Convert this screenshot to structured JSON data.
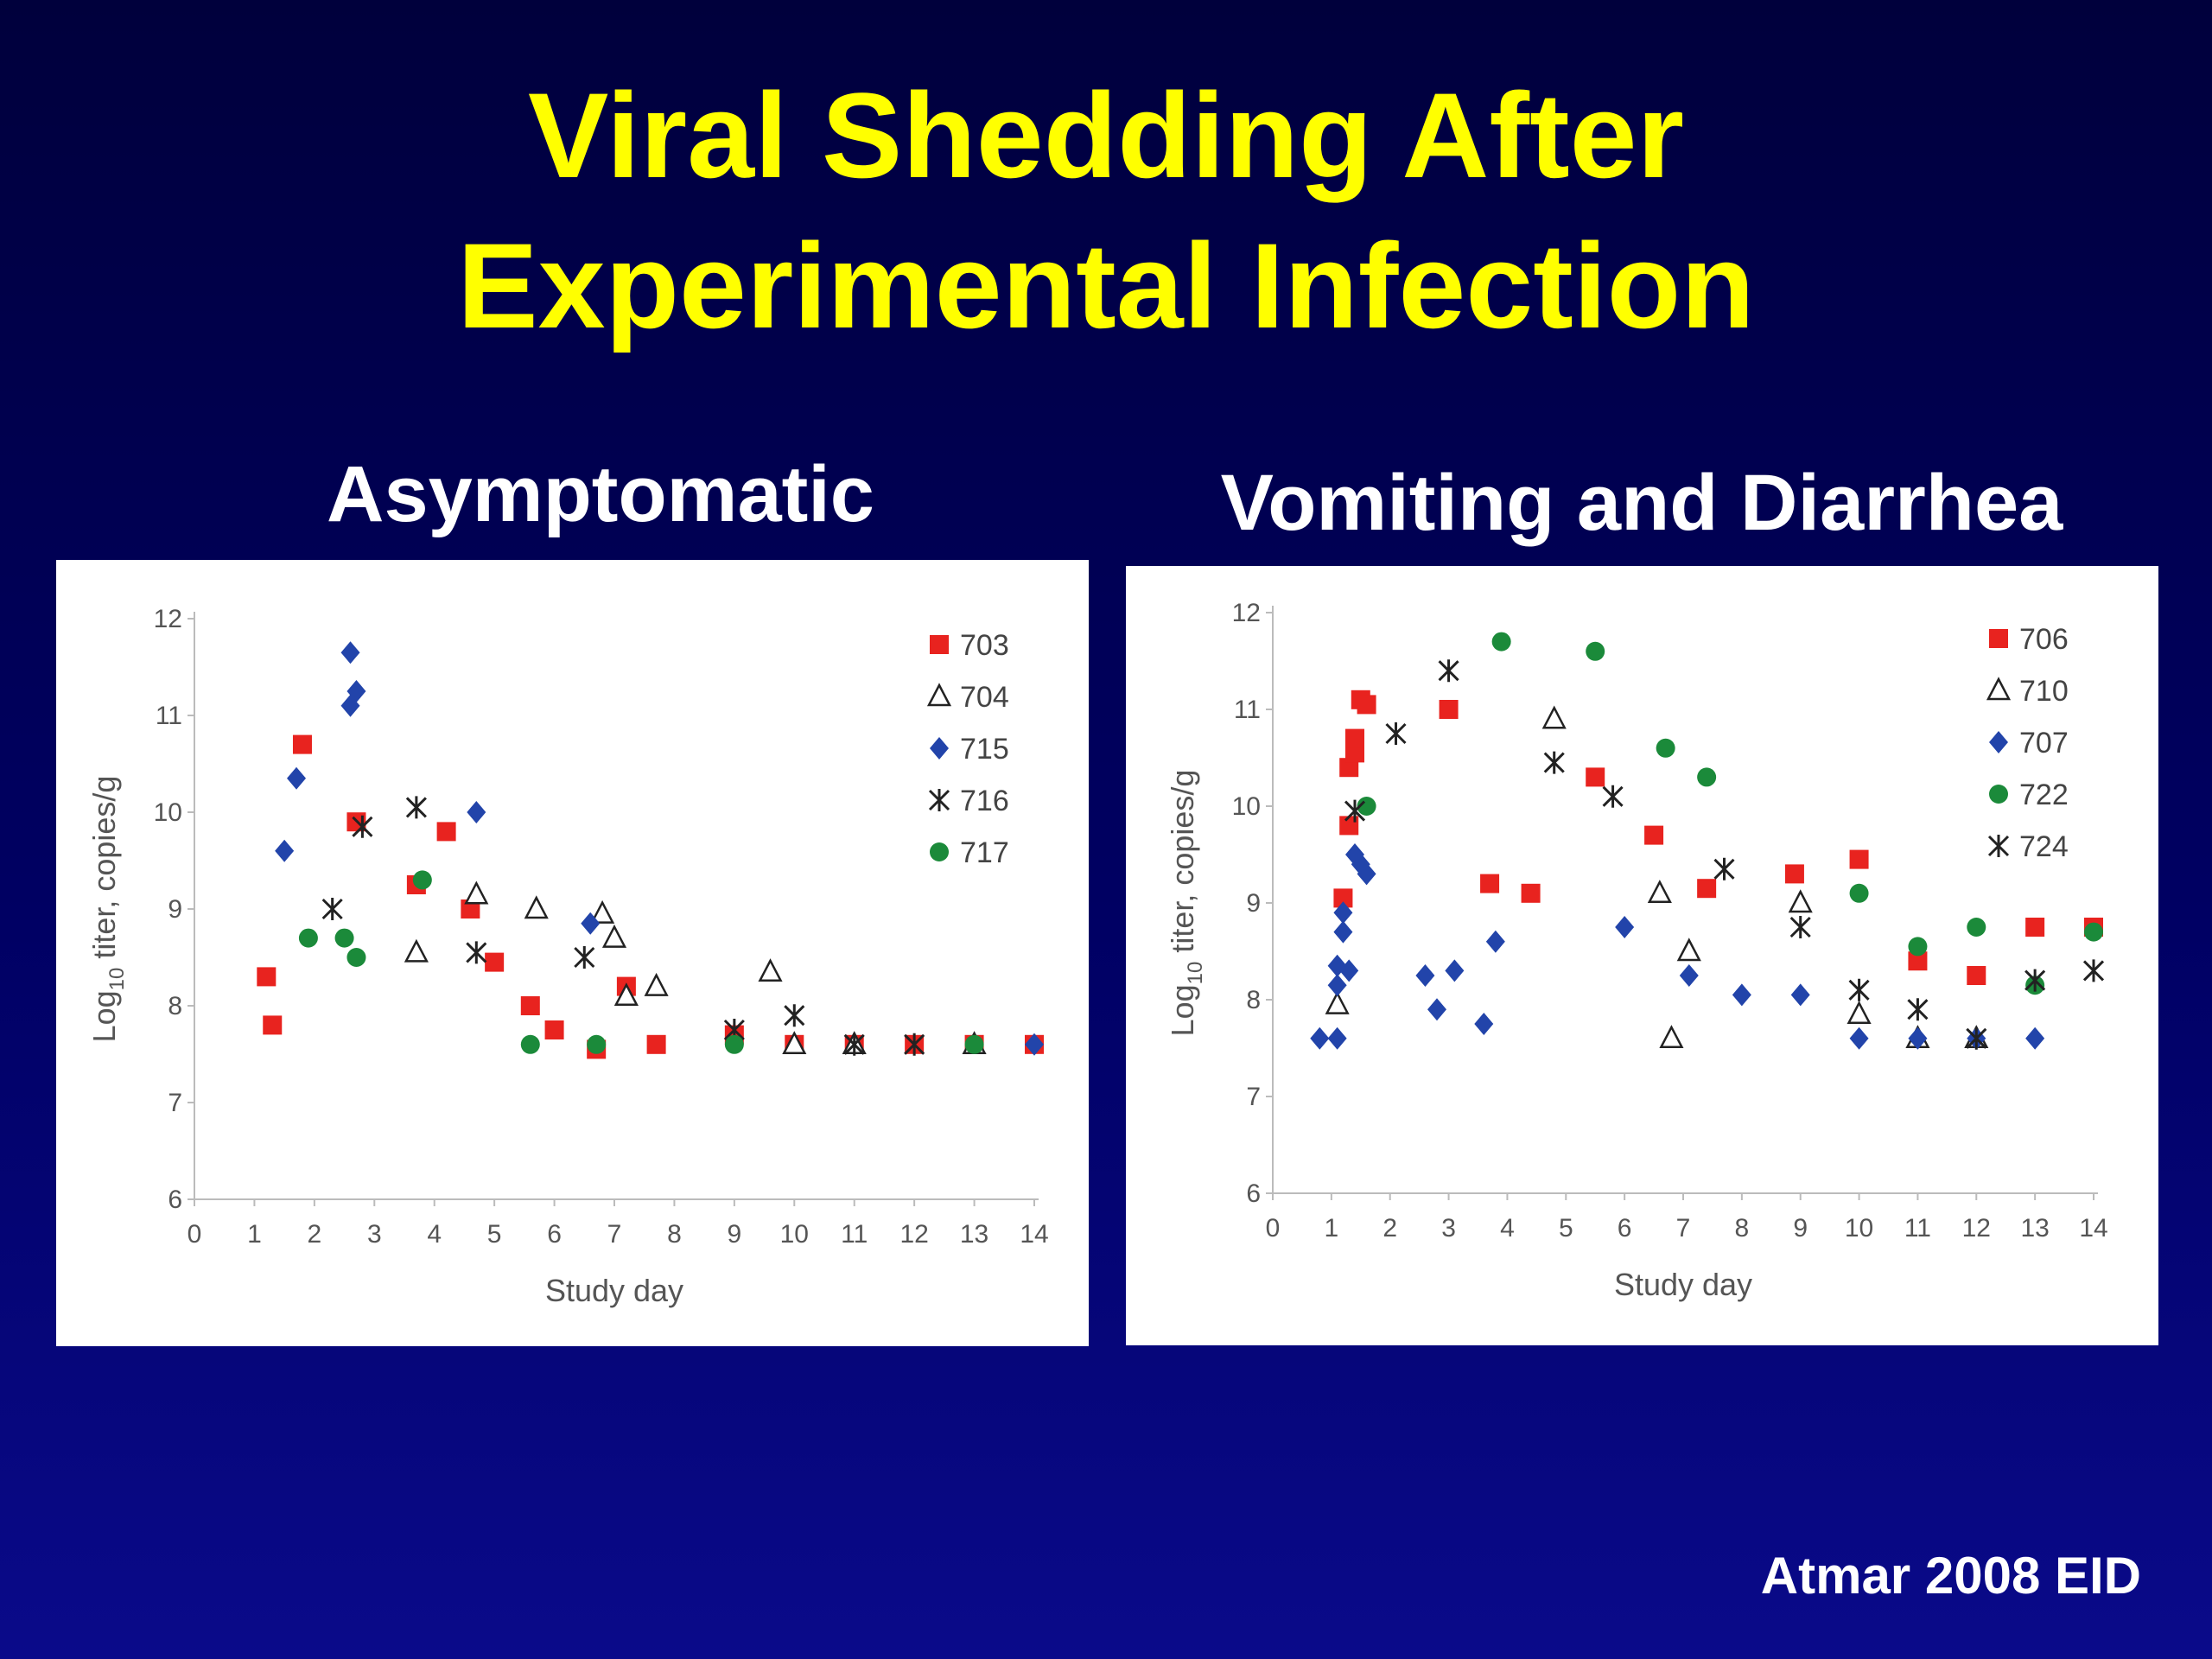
{
  "slide": {
    "title_line1": "Viral Shedding After",
    "title_line2": "Experimental Infection",
    "citation": "Atmar 2008 EID"
  },
  "colors": {
    "red": "#e8231f",
    "blue": "#2244aa",
    "green": "#1b8a3a",
    "black": "#222222",
    "title": "#ffff00"
  },
  "chart_data": [
    {
      "type": "scatter",
      "title": "Asymptomatic",
      "xlabel": "Study day",
      "ylabel_prefix": "Log",
      "ylabel_sub": "10",
      "ylabel_rest": " titer, copies/g",
      "xlim": [
        0,
        14
      ],
      "ylim": [
        6,
        12
      ],
      "x_ticks": [
        "0",
        "1",
        "2",
        "3",
        "4",
        "5",
        "6",
        "7",
        "8",
        "9",
        "10",
        "11",
        "12",
        "13",
        "14"
      ],
      "y_ticks": [
        "6",
        "7",
        "8",
        "9",
        "10",
        "11",
        "12"
      ],
      "legend_position": "top-right",
      "series": [
        {
          "name": "703",
          "marker": "square",
          "color": "#e8231f",
          "points": [
            [
              1.2,
              8.3
            ],
            [
              1.3,
              7.8
            ],
            [
              1.8,
              10.7
            ],
            [
              2.7,
              9.9
            ],
            [
              3.7,
              9.25
            ],
            [
              4.2,
              9.8
            ],
            [
              4.6,
              9.0
            ],
            [
              5.0,
              8.45
            ],
            [
              5.6,
              8.0
            ],
            [
              6.0,
              7.75
            ],
            [
              6.7,
              7.55
            ],
            [
              7.2,
              8.2
            ],
            [
              7.7,
              7.6
            ],
            [
              9.0,
              7.7
            ],
            [
              10.0,
              7.6
            ],
            [
              11.0,
              7.6
            ],
            [
              12.0,
              7.6
            ],
            [
              13.0,
              7.6
            ],
            [
              14.0,
              7.6
            ]
          ]
        },
        {
          "name": "704",
          "marker": "triangle",
          "color": "#222222",
          "points": [
            [
              3.7,
              8.55
            ],
            [
              4.7,
              9.15
            ],
            [
              5.7,
              9.0
            ],
            [
              6.8,
              8.95
            ],
            [
              7.0,
              8.7
            ],
            [
              7.2,
              8.1
            ],
            [
              7.7,
              8.2
            ],
            [
              9.6,
              8.35
            ],
            [
              10.0,
              7.6
            ],
            [
              11.0,
              7.6
            ],
            [
              13.0,
              7.6
            ]
          ]
        },
        {
          "name": "715",
          "marker": "diamond",
          "color": "#2244aa",
          "points": [
            [
              1.5,
              9.6
            ],
            [
              1.7,
              10.35
            ],
            [
              2.6,
              11.65
            ],
            [
              2.6,
              11.1
            ],
            [
              2.7,
              11.25
            ],
            [
              4.7,
              10.0
            ],
            [
              6.6,
              8.85
            ],
            [
              14.0,
              7.6
            ]
          ]
        },
        {
          "name": "716",
          "marker": "asterisk",
          "color": "#222222",
          "points": [
            [
              2.3,
              9.0
            ],
            [
              2.8,
              9.85
            ],
            [
              3.7,
              10.05
            ],
            [
              4.7,
              8.55
            ],
            [
              6.5,
              8.5
            ],
            [
              9.0,
              7.75
            ],
            [
              10.0,
              7.9
            ],
            [
              11.0,
              7.6
            ],
            [
              12.0,
              7.6
            ]
          ]
        },
        {
          "name": "717",
          "marker": "circle",
          "color": "#1b8a3a",
          "points": [
            [
              1.9,
              8.7
            ],
            [
              2.5,
              8.7
            ],
            [
              2.7,
              8.5
            ],
            [
              3.8,
              9.3
            ],
            [
              5.6,
              7.6
            ],
            [
              6.7,
              7.6
            ],
            [
              9.0,
              7.6
            ],
            [
              13.0,
              7.6
            ]
          ]
        }
      ]
    },
    {
      "type": "scatter",
      "title": "Vomiting and Diarrhea",
      "xlabel": "Study day",
      "ylabel_prefix": "Log",
      "ylabel_sub": "10",
      "ylabel_rest": " titer, copies/g",
      "xlim": [
        0,
        14
      ],
      "ylim": [
        6,
        12
      ],
      "x_ticks": [
        "0",
        "1",
        "2",
        "3",
        "4",
        "5",
        "6",
        "7",
        "8",
        "9",
        "10",
        "11",
        "12",
        "13",
        "14"
      ],
      "y_ticks": [
        "6",
        "7",
        "8",
        "9",
        "10",
        "11",
        "12"
      ],
      "legend_position": "top-right",
      "series": [
        {
          "name": "706",
          "marker": "square",
          "color": "#e8231f",
          "points": [
            [
              1.2,
              9.05
            ],
            [
              1.3,
              9.8
            ],
            [
              1.3,
              10.4
            ],
            [
              1.4,
              10.55
            ],
            [
              1.4,
              10.7
            ],
            [
              1.5,
              11.1
            ],
            [
              1.6,
              11.05
            ],
            [
              3.0,
              11.0
            ],
            [
              3.7,
              9.2
            ],
            [
              4.4,
              9.1
            ],
            [
              5.5,
              10.3
            ],
            [
              6.5,
              9.7
            ],
            [
              7.4,
              9.15
            ],
            [
              8.9,
              9.3
            ],
            [
              10.0,
              9.45
            ],
            [
              11.0,
              8.4
            ],
            [
              12.0,
              8.25
            ],
            [
              13.0,
              8.75
            ],
            [
              14.0,
              8.75
            ]
          ]
        },
        {
          "name": "710",
          "marker": "triangle",
          "color": "#222222",
          "points": [
            [
              1.1,
              7.95
            ],
            [
              4.8,
              10.9
            ],
            [
              6.6,
              9.1
            ],
            [
              6.8,
              7.6
            ],
            [
              7.1,
              8.5
            ],
            [
              9.0,
              9.0
            ],
            [
              10.0,
              7.85
            ],
            [
              11.0,
              7.6
            ],
            [
              12.0,
              7.6
            ]
          ]
        },
        {
          "name": "707",
          "marker": "diamond",
          "color": "#2244aa",
          "points": [
            [
              0.8,
              7.6
            ],
            [
              1.1,
              7.6
            ],
            [
              1.1,
              8.15
            ],
            [
              1.1,
              8.35
            ],
            [
              1.2,
              8.7
            ],
            [
              1.2,
              8.9
            ],
            [
              1.3,
              8.3
            ],
            [
              1.4,
              9.5
            ],
            [
              1.5,
              9.4
            ],
            [
              1.6,
              9.3
            ],
            [
              2.6,
              8.25
            ],
            [
              2.8,
              7.9
            ],
            [
              3.1,
              8.3
            ],
            [
              3.6,
              7.75
            ],
            [
              3.8,
              8.6
            ],
            [
              6.0,
              8.75
            ],
            [
              7.1,
              8.25
            ],
            [
              8.0,
              8.05
            ],
            [
              9.0,
              8.05
            ],
            [
              10.0,
              7.6
            ],
            [
              11.0,
              7.6
            ],
            [
              12.0,
              7.6
            ],
            [
              13.0,
              7.6
            ]
          ]
        },
        {
          "name": "722",
          "marker": "circle",
          "color": "#1b8a3a",
          "points": [
            [
              1.6,
              10.0
            ],
            [
              3.9,
              11.7
            ],
            [
              5.5,
              11.6
            ],
            [
              6.7,
              10.6
            ],
            [
              7.4,
              10.3
            ],
            [
              10.0,
              9.1
            ],
            [
              11.0,
              8.55
            ],
            [
              12.0,
              8.75
            ],
            [
              13.0,
              8.15
            ],
            [
              14.0,
              8.7
            ]
          ]
        },
        {
          "name": "724",
          "marker": "asterisk",
          "color": "#222222",
          "points": [
            [
              1.4,
              9.95
            ],
            [
              2.1,
              10.75
            ],
            [
              3.0,
              11.4
            ],
            [
              4.8,
              10.45
            ],
            [
              5.8,
              10.1
            ],
            [
              7.7,
              9.35
            ],
            [
              9.0,
              8.75
            ],
            [
              10.0,
              8.1
            ],
            [
              11.0,
              7.9
            ],
            [
              12.0,
              7.6
            ],
            [
              13.0,
              8.2
            ],
            [
              14.0,
              8.3
            ]
          ]
        }
      ]
    }
  ]
}
